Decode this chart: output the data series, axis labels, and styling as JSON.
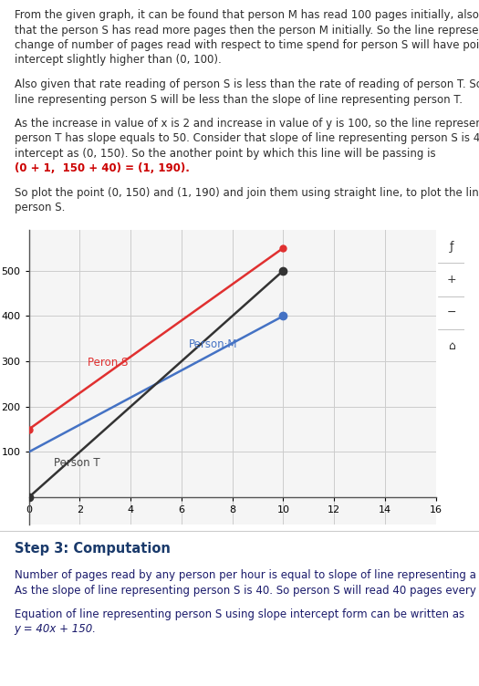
{
  "person_M": {
    "x": [
      0,
      10
    ],
    "y": [
      100,
      400
    ],
    "color": "#4472c4",
    "label": "Person·M"
  },
  "person_S": {
    "x": [
      0,
      10
    ],
    "y": [
      150,
      550
    ],
    "color": "#e03030",
    "label": "Peron S"
  },
  "person_T": {
    "x": [
      0,
      10
    ],
    "y": [
      0,
      500
    ],
    "color": "#333333",
    "label": "Person T"
  },
  "xlim": [
    0,
    16
  ],
  "ylim": [
    -60,
    590
  ],
  "xticks": [
    0,
    2,
    4,
    6,
    8,
    10,
    12,
    14,
    16
  ],
  "yticks": [
    100,
    200,
    300,
    400,
    500
  ],
  "grid_color": "#cccccc",
  "bg_color": "#ffffff",
  "plot_bg": "#f5f5f5",
  "text_color": "#2d2d2d",
  "blue_color": "#1a3a6b",
  "red_color": "#cc0000",
  "step3_color": "#1a3a6b",
  "font_size": 8.5,
  "step3_title": "Step 3: Computation"
}
